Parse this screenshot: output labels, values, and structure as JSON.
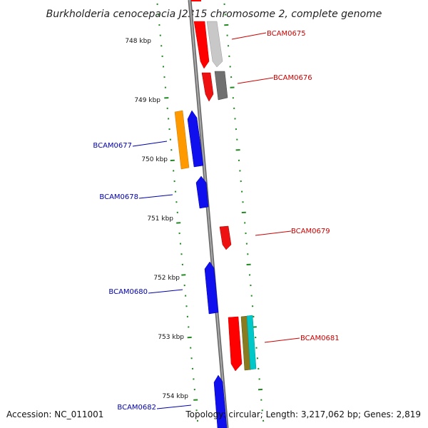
{
  "title": "Burkholderia cenocepacia J2315 chromosome 2, complete genome",
  "accession_text": "Accession: NC_011001",
  "topology_text": "Topology: circular; Length: 3,217,062 bp; Genes: 2,819",
  "colors": {
    "forward_label": "#cc0000",
    "reverse_label": "#0000aa",
    "tick": "#228822",
    "backbone": "#888888"
  },
  "kbp_ticks": [
    {
      "kbp": 748,
      "label": "748 kbp"
    },
    {
      "kbp": 749,
      "label": "749 kbp"
    },
    {
      "kbp": 750,
      "label": "750 kbp"
    },
    {
      "kbp": 751,
      "label": "751 kbp"
    },
    {
      "kbp": 752,
      "label": "752 kbp"
    },
    {
      "kbp": 753,
      "label": "753 kbp"
    },
    {
      "kbp": 754,
      "label": "754 kbp"
    }
  ],
  "labels": [
    {
      "text": "BCAM0675",
      "strand": "forward"
    },
    {
      "text": "BCAM0676",
      "strand": "forward"
    },
    {
      "text": "BCAM0677",
      "strand": "reverse"
    },
    {
      "text": "BCAM0678",
      "strand": "reverse"
    },
    {
      "text": "BCAM0679",
      "strand": "forward"
    },
    {
      "text": "BCAM0680",
      "strand": "reverse"
    },
    {
      "text": "BCAM0681",
      "strand": "forward"
    },
    {
      "text": "BCAM0682",
      "strand": "reverse"
    }
  ]
}
